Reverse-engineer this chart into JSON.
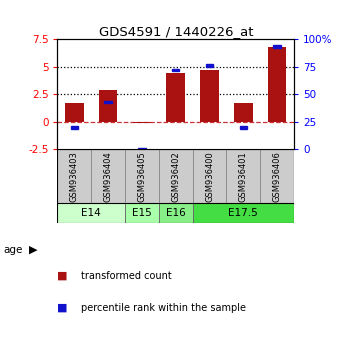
{
  "title": "GDS4591 / 1440226_at",
  "samples": [
    "GSM936403",
    "GSM936404",
    "GSM936405",
    "GSM936402",
    "GSM936400",
    "GSM936401",
    "GSM936406"
  ],
  "red_bars": [
    1.7,
    2.9,
    -0.1,
    4.4,
    4.7,
    1.7,
    6.8
  ],
  "blue_vals": [
    20,
    43,
    0,
    72,
    76,
    20,
    93
  ],
  "age_groups": [
    {
      "label": "E14",
      "start": 0,
      "end": 2,
      "color": "#ccffcc"
    },
    {
      "label": "E15",
      "start": 2,
      "end": 3,
      "color": "#aaffaa"
    },
    {
      "label": "E16",
      "start": 3,
      "end": 4,
      "color": "#88ee88"
    },
    {
      "label": "E17.5",
      "start": 4,
      "end": 7,
      "color": "#44dd44"
    }
  ],
  "ylim_left": [
    -2.5,
    7.5
  ],
  "ylim_right": [
    0,
    100
  ],
  "yticks_left": [
    -2.5,
    0,
    2.5,
    5,
    7.5
  ],
  "yticks_right": [
    0,
    25,
    50,
    75,
    100
  ],
  "ytick_labels_left": [
    "-2.5",
    "0",
    "2.5",
    "5",
    "7.5"
  ],
  "ytick_labels_right": [
    "0",
    "25",
    "50",
    "75",
    "100%"
  ],
  "hlines": [
    2.5,
    5.0
  ],
  "bar_color": "#aa1111",
  "blue_color": "#1111cc",
  "zero_line_color": "#cc3333",
  "background_color": "#ffffff",
  "bar_width": 0.55,
  "sq_size": 0.22
}
